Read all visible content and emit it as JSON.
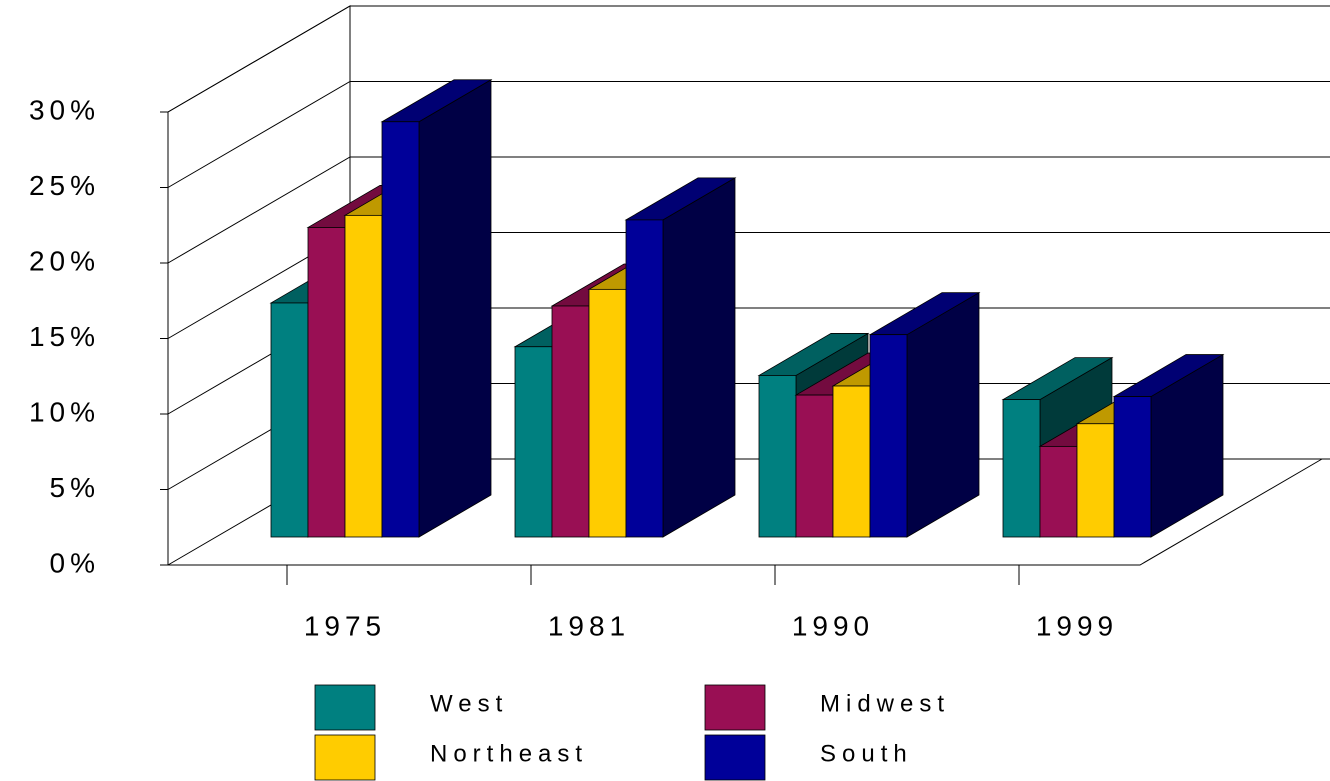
{
  "chart_data": {
    "type": "bar3d",
    "categories": [
      "1975",
      "1981",
      "1990",
      "1999"
    ],
    "series": [
      {
        "name": "West",
        "color": "#008080",
        "values": [
          15.5,
          12.6,
          10.7,
          9.1
        ]
      },
      {
        "name": "Midwest",
        "color": "#990f54",
        "values": [
          20.5,
          15.3,
          9.4,
          6.0
        ]
      },
      {
        "name": "Northeast",
        "color": "#ffcc00",
        "values": [
          21.3,
          16.4,
          10.0,
          7.5
        ]
      },
      {
        "name": "South",
        "color": "#000099",
        "values": [
          27.5,
          21.0,
          13.4,
          9.3
        ]
      }
    ],
    "ylim": [
      0,
      30
    ],
    "yticks": [
      {
        "value": 0,
        "label": "0%"
      },
      {
        "value": 5,
        "label": "5%"
      },
      {
        "value": 10,
        "label": "10%"
      },
      {
        "value": 15,
        "label": "15%"
      },
      {
        "value": 20,
        "label": "20%"
      },
      {
        "value": 25,
        "label": "25%"
      },
      {
        "value": 30,
        "label": "30%"
      }
    ],
    "grid": true
  }
}
